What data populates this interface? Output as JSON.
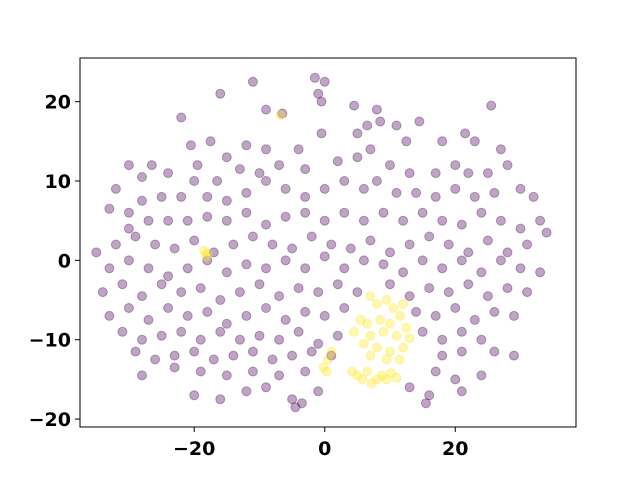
{
  "chart_data": {
    "type": "scatter",
    "title": "",
    "xlabel": "",
    "ylabel": "",
    "xlim": [
      -37.5,
      38.5
    ],
    "ylim": [
      -21,
      25.5
    ],
    "grid": false,
    "xticks": [
      -20,
      0,
      20
    ],
    "yticks": [
      -20,
      -10,
      0,
      10,
      20
    ],
    "xtick_labels": [
      "−20",
      "0",
      "20"
    ],
    "ytick_labels": [
      "−20",
      "−10",
      "0",
      "10",
      "20"
    ],
    "colors": {
      "cluster_0": "#440154",
      "cluster_1": "#fde725"
    },
    "marker_alpha": 0.35,
    "series": [
      {
        "cluster": 0,
        "points": [
          [
            -11,
            22.5
          ],
          [
            -16,
            21
          ],
          [
            -9,
            19
          ],
          [
            -6.5,
            18.5
          ],
          [
            -1.5,
            23
          ],
          [
            0,
            22.5
          ],
          [
            -1,
            21
          ],
          [
            -0.5,
            20
          ],
          [
            4.5,
            19.5
          ],
          [
            8,
            19
          ],
          [
            14.5,
            17.5
          ],
          [
            25.5,
            19.5
          ],
          [
            -22,
            18
          ],
          [
            -20.5,
            14.5
          ],
          [
            -17.5,
            15
          ],
          [
            -15,
            13
          ],
          [
            -12,
            14.5
          ],
          [
            -9,
            14
          ],
          [
            -4,
            14
          ],
          [
            -0.5,
            16
          ],
          [
            5,
            16
          ],
          [
            6.5,
            17
          ],
          [
            8.5,
            17.5
          ],
          [
            11,
            17
          ],
          [
            12.5,
            15
          ],
          [
            18,
            15
          ],
          [
            21.5,
            16
          ],
          [
            23,
            15
          ],
          [
            27,
            14
          ],
          [
            -30,
            12
          ],
          [
            -28,
            10.5
          ],
          [
            -26.5,
            12
          ],
          [
            -24,
            11
          ],
          [
            -19.5,
            12
          ],
          [
            -16.5,
            10
          ],
          [
            -13,
            11.5
          ],
          [
            -10,
            11
          ],
          [
            -7,
            12
          ],
          [
            -3,
            11.5
          ],
          [
            2,
            12.5
          ],
          [
            5,
            13
          ],
          [
            7,
            14
          ],
          [
            10,
            12
          ],
          [
            13,
            11
          ],
          [
            17,
            11
          ],
          [
            20,
            12
          ],
          [
            22,
            11
          ],
          [
            25,
            11
          ],
          [
            28,
            12
          ],
          [
            -32,
            9
          ],
          [
            -30,
            6
          ],
          [
            -28,
            7.5
          ],
          [
            -25,
            8
          ],
          [
            -22,
            8
          ],
          [
            -20,
            10
          ],
          [
            -18,
            8
          ],
          [
            -15,
            7.5
          ],
          [
            -12,
            8.5
          ],
          [
            -9,
            10
          ],
          [
            -6,
            9
          ],
          [
            -3,
            8
          ],
          [
            0,
            9
          ],
          [
            3,
            10
          ],
          [
            6,
            9
          ],
          [
            8,
            10
          ],
          [
            11,
            8.5
          ],
          [
            14,
            8.5
          ],
          [
            17,
            8
          ],
          [
            20,
            9
          ],
          [
            23,
            8
          ],
          [
            26,
            8.5
          ],
          [
            30,
            9
          ],
          [
            32,
            8
          ],
          [
            -33,
            6.5
          ],
          [
            -30,
            4
          ],
          [
            -27,
            5
          ],
          [
            -24,
            5
          ],
          [
            -21,
            5
          ],
          [
            -18,
            5.5
          ],
          [
            -15,
            5
          ],
          [
            -12,
            6
          ],
          [
            -9,
            4.5
          ],
          [
            -6,
            5.5
          ],
          [
            -3,
            6
          ],
          [
            0,
            5
          ],
          [
            3,
            6
          ],
          [
            6,
            5
          ],
          [
            9,
            6
          ],
          [
            12,
            5
          ],
          [
            15,
            6
          ],
          [
            18,
            5
          ],
          [
            21,
            4.5
          ],
          [
            24,
            6
          ],
          [
            27,
            5
          ],
          [
            30,
            4
          ],
          [
            33,
            5
          ],
          [
            -35,
            1
          ],
          [
            -32,
            2
          ],
          [
            -29,
            3
          ],
          [
            -26,
            2
          ],
          [
            -23,
            1.5
          ],
          [
            -20,
            2.5
          ],
          [
            -17,
            1
          ],
          [
            -14,
            2
          ],
          [
            -11,
            3
          ],
          [
            -8,
            2
          ],
          [
            -5,
            1.5
          ],
          [
            -2,
            3
          ],
          [
            1,
            2
          ],
          [
            4,
            1.5
          ],
          [
            7,
            2.5
          ],
          [
            10,
            1
          ],
          [
            13,
            2
          ],
          [
            16,
            3
          ],
          [
            19,
            2
          ],
          [
            22,
            1
          ],
          [
            25,
            2.5
          ],
          [
            28,
            1
          ],
          [
            31,
            2
          ],
          [
            34,
            3.5
          ],
          [
            -33,
            -1
          ],
          [
            -30,
            0
          ],
          [
            -27,
            -1
          ],
          [
            -24,
            -2
          ],
          [
            -21,
            -1
          ],
          [
            -18,
            0
          ],
          [
            -15,
            -1.5
          ],
          [
            -12,
            -0.5
          ],
          [
            -9,
            -1
          ],
          [
            -6,
            0
          ],
          [
            -3,
            -1
          ],
          [
            0,
            0.5
          ],
          [
            3,
            -1
          ],
          [
            6,
            0
          ],
          [
            9,
            -0.5
          ],
          [
            12,
            -1.5
          ],
          [
            15,
            0
          ],
          [
            18,
            -1
          ],
          [
            21,
            0
          ],
          [
            24,
            -1.5
          ],
          [
            27,
            0
          ],
          [
            30,
            -1
          ],
          [
            33,
            -1.5
          ],
          [
            -34,
            -4
          ],
          [
            -31,
            -3
          ],
          [
            -28,
            -4.5
          ],
          [
            -25,
            -3
          ],
          [
            -22,
            -4
          ],
          [
            -19,
            -3.5
          ],
          [
            -16,
            -5
          ],
          [
            -13,
            -4
          ],
          [
            -10,
            -3
          ],
          [
            -7,
            -4.5
          ],
          [
            -4,
            -3.5
          ],
          [
            -1,
            -4
          ],
          [
            2,
            -3
          ],
          [
            5,
            -4
          ],
          [
            10,
            -3
          ],
          [
            13,
            -4.5
          ],
          [
            16,
            -3.5
          ],
          [
            19,
            -4
          ],
          [
            22,
            -3
          ],
          [
            25,
            -4.5
          ],
          [
            28,
            -3.5
          ],
          [
            31,
            -4
          ],
          [
            -33,
            -7
          ],
          [
            -30,
            -6
          ],
          [
            -27,
            -7.5
          ],
          [
            -24,
            -6
          ],
          [
            -21,
            -7
          ],
          [
            -18,
            -6.5
          ],
          [
            -15,
            -8
          ],
          [
            -12,
            -7
          ],
          [
            -9,
            -6
          ],
          [
            -6,
            -7.5
          ],
          [
            -3,
            -6.5
          ],
          [
            0,
            -7
          ],
          [
            3,
            -6
          ],
          [
            14,
            -6.5
          ],
          [
            17,
            -7
          ],
          [
            20,
            -6
          ],
          [
            23,
            -7.5
          ],
          [
            26,
            -6.5
          ],
          [
            29,
            -7
          ],
          [
            -31,
            -9
          ],
          [
            -28,
            -10
          ],
          [
            -25,
            -9.5
          ],
          [
            -22,
            -9
          ],
          [
            -19,
            -10
          ],
          [
            -16,
            -9
          ],
          [
            -13,
            -10
          ],
          [
            -10,
            -9.5
          ],
          [
            -7,
            -10
          ],
          [
            -4,
            -9
          ],
          [
            -1,
            -10.5
          ],
          [
            2,
            -9.5
          ],
          [
            15,
            -9
          ],
          [
            18,
            -10
          ],
          [
            21,
            -9
          ],
          [
            24,
            -10
          ],
          [
            -29,
            -11.5
          ],
          [
            -26,
            -12.5
          ],
          [
            -23,
            -12
          ],
          [
            -20,
            -11.5
          ],
          [
            -17,
            -12.5
          ],
          [
            -14,
            -12
          ],
          [
            -11,
            -11.5
          ],
          [
            -8,
            -12.5
          ],
          [
            -5,
            -12
          ],
          [
            -2,
            -11.5
          ],
          [
            1,
            -12
          ],
          [
            18,
            -12
          ],
          [
            21,
            -11.5
          ],
          [
            26,
            -11.5
          ],
          [
            29,
            -12
          ],
          [
            -28,
            -14.5
          ],
          [
            -23,
            -13.5
          ],
          [
            -19,
            -14
          ],
          [
            -15,
            -14.5
          ],
          [
            -11,
            -14
          ],
          [
            -7,
            -14.5
          ],
          [
            -3,
            -14
          ],
          [
            17,
            -14
          ],
          [
            20,
            -15
          ],
          [
            24,
            -14.5
          ],
          [
            -20,
            -17
          ],
          [
            -16,
            -17.5
          ],
          [
            -12,
            -16.5
          ],
          [
            -9,
            -16
          ],
          [
            -5,
            -17.5
          ],
          [
            -1,
            -16.5
          ],
          [
            13,
            -16
          ],
          [
            16,
            -17
          ],
          [
            21,
            -16.5
          ],
          [
            -4.5,
            -18.5
          ],
          [
            -3.5,
            -18
          ],
          [
            15.5,
            -18
          ]
        ]
      },
      {
        "cluster": 1,
        "points": [
          [
            -6.8,
            18.3
          ],
          [
            -18.5,
            1.2
          ],
          [
            -18.2,
            0.5
          ],
          [
            -18,
            0.9
          ],
          [
            7,
            -4.5
          ],
          [
            8,
            -5.5
          ],
          [
            9.5,
            -5
          ],
          [
            10.5,
            -6
          ],
          [
            12,
            -5.5
          ],
          [
            5.5,
            -7.5
          ],
          [
            6.5,
            -8
          ],
          [
            8.5,
            -7.5
          ],
          [
            10,
            -8
          ],
          [
            11.5,
            -7
          ],
          [
            12.5,
            -8.5
          ],
          [
            4.5,
            -9
          ],
          [
            7,
            -9.5
          ],
          [
            9,
            -9
          ],
          [
            11,
            -9.5
          ],
          [
            13,
            -9.8
          ],
          [
            6,
            -10.5
          ],
          [
            8,
            -11
          ],
          [
            10,
            -11.5
          ],
          [
            12,
            -11
          ],
          [
            7,
            -12
          ],
          [
            9.5,
            -12.5
          ],
          [
            11.5,
            -12.5
          ],
          [
            0.5,
            -12.5
          ],
          [
            1,
            -11.5
          ],
          [
            -0.2,
            -13.5
          ],
          [
            0.3,
            -14
          ],
          [
            4.2,
            -14
          ],
          [
            5,
            -14.5
          ],
          [
            5.8,
            -15
          ],
          [
            6.5,
            -14
          ],
          [
            7.2,
            -15.5
          ],
          [
            8,
            -15
          ],
          [
            8.8,
            -14.5
          ],
          [
            9.5,
            -15
          ],
          [
            10.2,
            -14.2
          ],
          [
            11,
            -14.8
          ]
        ]
      }
    ]
  }
}
